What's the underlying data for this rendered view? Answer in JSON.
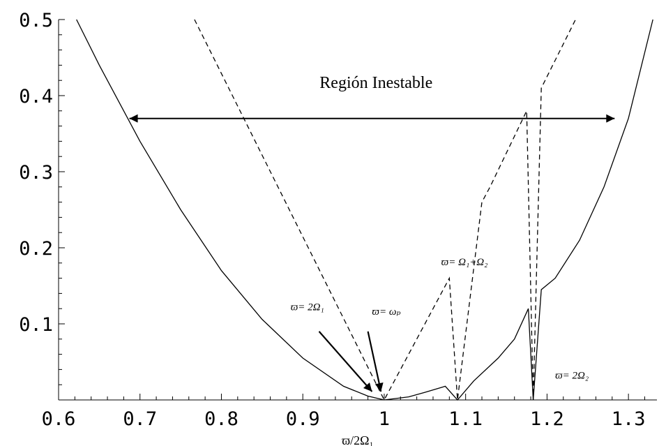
{
  "chart_data": {
    "type": "line",
    "title": "",
    "xlabel": "ϖ/2Ω₁",
    "ylabel": "",
    "xlim": [
      0.6,
      1.335
    ],
    "ylim": [
      0,
      0.5
    ],
    "x_ticks": [
      0.6,
      0.7,
      0.8,
      0.9,
      1.0,
      1.1,
      1.2,
      1.3
    ],
    "x_tick_labels": [
      "0.6",
      "0.7",
      "0.8",
      "0.9",
      "1",
      "1.1",
      "1.2",
      "1.3"
    ],
    "y_ticks": [
      0.1,
      0.2,
      0.3,
      0.4,
      0.5
    ],
    "y_tick_labels": [
      "0.1",
      "0.2",
      "0.3",
      "0.4",
      "0.5"
    ],
    "grid": false,
    "legend": "none",
    "series": [
      {
        "style": "solid",
        "x": [
          0.622,
          0.65,
          0.7,
          0.75,
          0.8,
          0.85,
          0.9,
          0.95,
          0.98,
          1.0,
          1.03,
          1.05,
          1.075,
          1.09,
          1.11,
          1.14,
          1.16,
          1.177,
          1.183,
          1.193,
          1.21,
          1.24,
          1.27,
          1.3,
          1.33
        ],
        "y": [
          0.5,
          0.44,
          0.34,
          0.25,
          0.17,
          0.106,
          0.055,
          0.018,
          0.005,
          0.0,
          0.004,
          0.01,
          0.018,
          0.0,
          0.025,
          0.055,
          0.08,
          0.12,
          0.0,
          0.145,
          0.16,
          0.21,
          0.28,
          0.37,
          0.5
        ]
      },
      {
        "style": "dashed",
        "x": [
          0.767,
          1.0,
          1.08,
          1.09,
          1.12,
          1.13,
          1.175,
          1.183,
          1.193,
          1.235
        ],
        "y": [
          0.5,
          0.0,
          0.16,
          0.0,
          0.26,
          0.28,
          0.38,
          0.0,
          0.41,
          0.5
        ]
      }
    ],
    "annotations": [
      {
        "text": "Región Inestable",
        "x": 0.99,
        "y": 0.41
      },
      {
        "text": "ϖ= 2Ω₁",
        "x": 0.885,
        "y": 0.118
      },
      {
        "text": "ϖ= ωₚ",
        "x": 0.985,
        "y": 0.112
      },
      {
        "text": "ϖ= Ω₁+Ω₂",
        "x": 1.07,
        "y": 0.177
      },
      {
        "text": "ϖ= 2Ω₂",
        "x": 1.21,
        "y": 0.028
      }
    ],
    "arrows": [
      {
        "x1": 0.687,
        "y1": 0.37,
        "x2": 1.283,
        "y2": 0.37,
        "double": true
      },
      {
        "x1": 0.92,
        "y1": 0.09,
        "x2": 0.985,
        "y2": 0.011
      },
      {
        "x1": 0.98,
        "y1": 0.09,
        "x2": 0.996,
        "y2": 0.011
      }
    ]
  }
}
